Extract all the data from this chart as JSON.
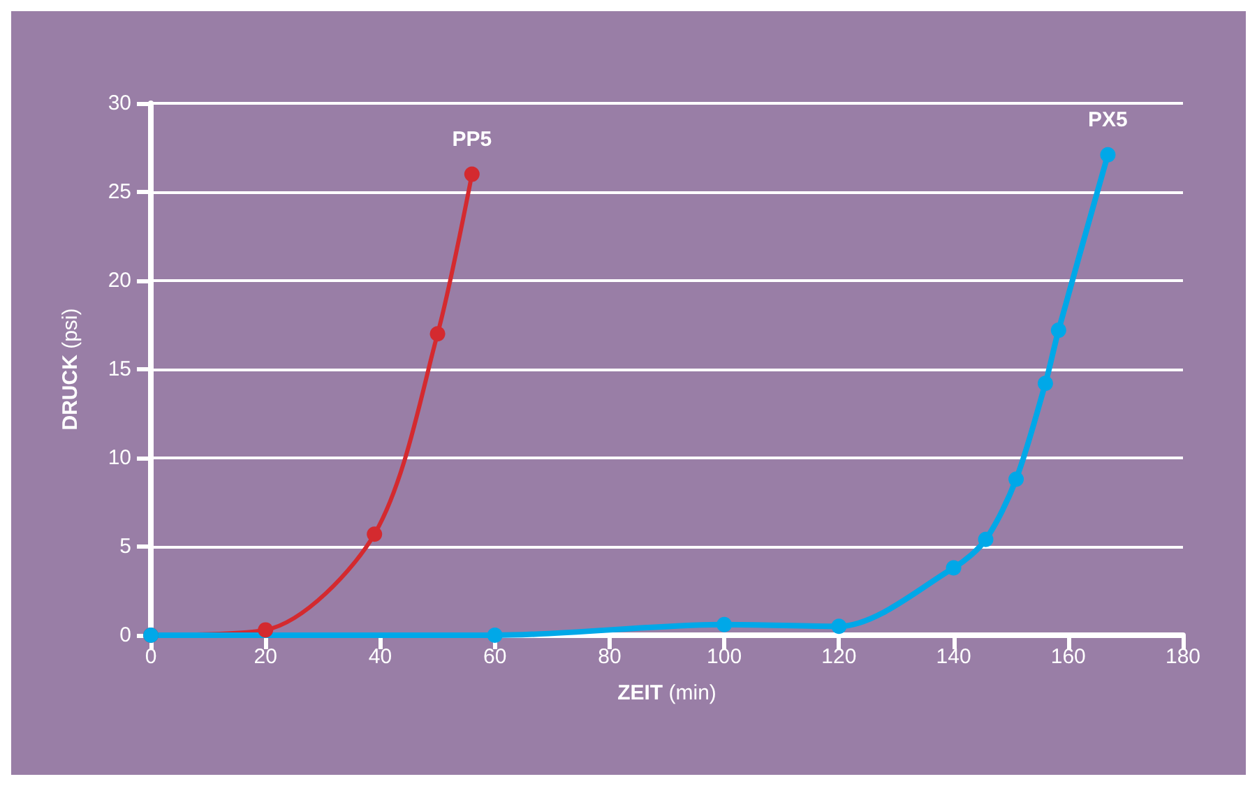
{
  "chart_data": {
    "type": "line",
    "xlabel": "ZEIT (min)",
    "ylabel": "DRUCK (psi)",
    "xlim": [
      0,
      180
    ],
    "xticks": [
      0,
      20,
      40,
      60,
      80,
      100,
      120,
      140,
      160,
      180
    ],
    "ylim": [
      0,
      30
    ],
    "yticks": [
      0,
      5,
      10,
      15,
      20,
      25,
      30
    ],
    "grid": "y",
    "marker": "circle",
    "line_style": "solid",
    "legend": false,
    "series": [
      {
        "name": "PP5",
        "color": "#d42a2f",
        "x": [
          0,
          20,
          39,
          50,
          56
        ],
        "values": [
          0,
          0.3,
          5.7,
          17,
          26
        ]
      },
      {
        "name": "PX5",
        "color": "#00a8e8",
        "x": [
          0,
          60,
          100,
          120,
          140,
          145.6,
          150.9,
          156,
          158.3,
          166.9
        ],
        "values": [
          0,
          0,
          0.6,
          0.5,
          3.8,
          5.4,
          8.8,
          14.2,
          17.2,
          27.1
        ]
      }
    ]
  }
}
